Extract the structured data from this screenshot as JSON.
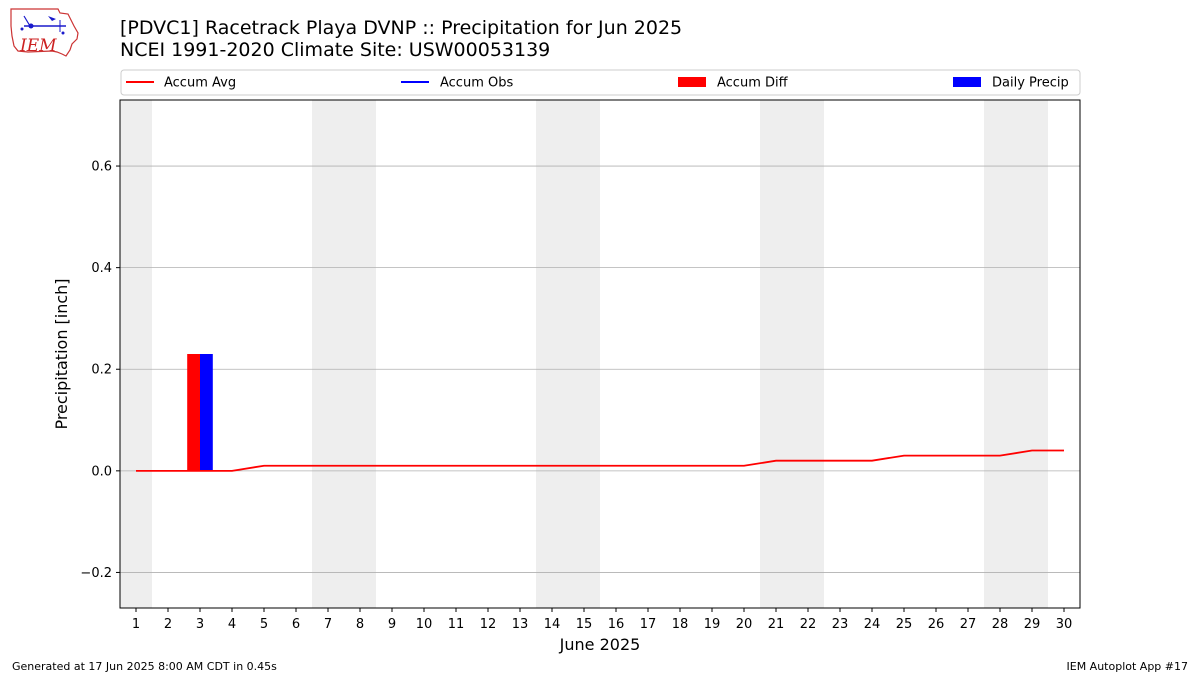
{
  "header": {
    "title_line1": "[PDVC1] Racetrack Playa DVNP :: Precipitation for Jun 2025",
    "title_line2": "NCEI 1991-2020 Climate Site: USW00053139",
    "logo_text": "IEM"
  },
  "footer": {
    "left": "Generated at 17 Jun 2025 8:00 AM CDT in 0.45s",
    "right": "IEM Autoplot App #17"
  },
  "chart_data": {
    "type": "bar",
    "xlabel": "June 2025",
    "ylabel": "Precipitation [inch]",
    "ylim": [
      -0.27,
      0.73
    ],
    "xlim": [
      0.5,
      30.5
    ],
    "yticks": [
      -0.2,
      0.0,
      0.2,
      0.4,
      0.6
    ],
    "ytick_labels": [
      "−0.2",
      "0.0",
      "0.2",
      "0.4",
      "0.6"
    ],
    "days": [
      1,
      2,
      3,
      4,
      5,
      6,
      7,
      8,
      9,
      10,
      11,
      12,
      13,
      14,
      15,
      16,
      17,
      18,
      19,
      20,
      21,
      22,
      23,
      24,
      25,
      26,
      27,
      28,
      29,
      30
    ],
    "weekend_days": [
      1,
      7,
      8,
      14,
      15,
      21,
      22,
      28,
      29
    ],
    "grid": "horizontal",
    "legend_placement": "top",
    "colors": {
      "accum_avg": "#ff0000",
      "accum_obs": "#0000ff",
      "accum_diff": "#ff0000",
      "daily_precip": "#0000ff",
      "weekend_shade": "#eeeeee",
      "grid": "#b0b0b0"
    },
    "series": [
      {
        "name": "Accum Avg",
        "kind": "line",
        "values": [
          0.0,
          0.0,
          0.0,
          0.0,
          0.01,
          0.01,
          0.01,
          0.01,
          0.01,
          0.01,
          0.01,
          0.01,
          0.01,
          0.01,
          0.01,
          0.01,
          0.01,
          0.01,
          0.01,
          0.01,
          0.02,
          0.02,
          0.02,
          0.02,
          0.03,
          0.03,
          0.03,
          0.03,
          0.04,
          0.04
        ]
      },
      {
        "name": "Accum Obs",
        "kind": "line",
        "values": []
      },
      {
        "name": "Accum Diff",
        "kind": "bar",
        "values": [
          {
            "day": 3,
            "value": 0.23
          }
        ]
      },
      {
        "name": "Daily Precip",
        "kind": "bar",
        "values": [
          {
            "day": 3,
            "value": 0.23
          }
        ]
      }
    ]
  }
}
